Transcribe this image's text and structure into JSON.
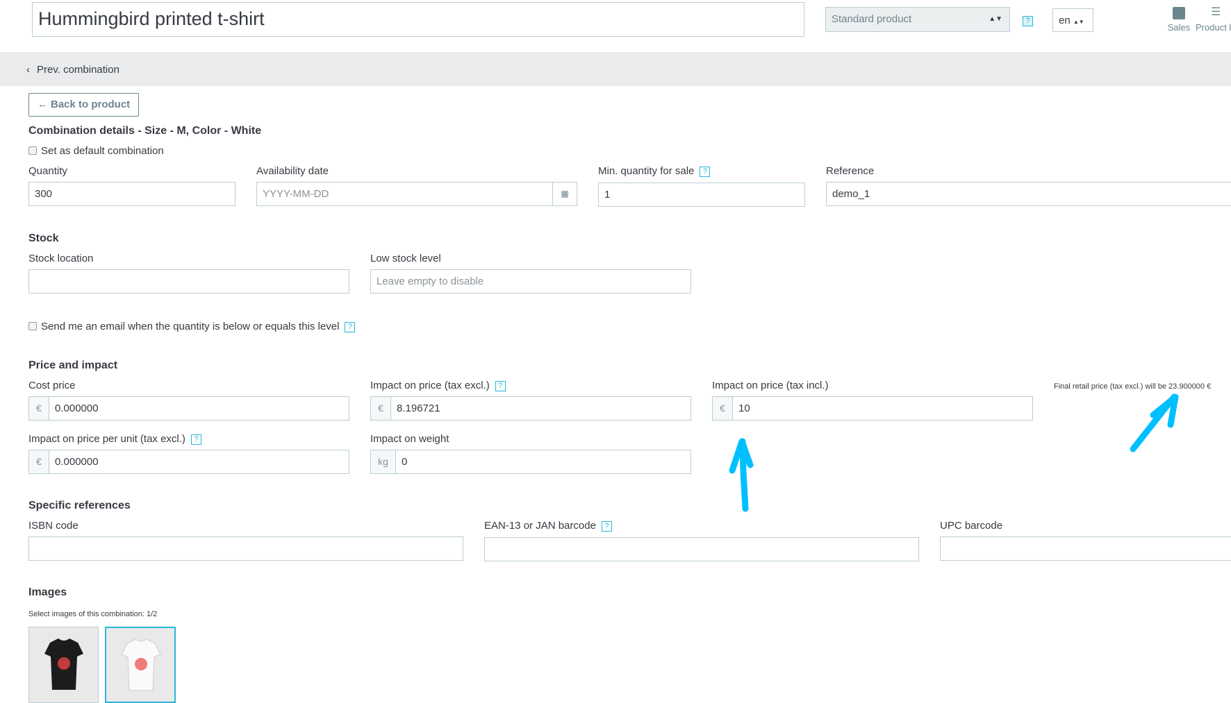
{
  "header": {
    "title": "Hummingbird printed t-shirt",
    "product_type": "Standard product",
    "language": "en",
    "sales_label": "Sales",
    "product_list_label": "Product l"
  },
  "nav": {
    "prev_combination": "Prev. combination",
    "back_to_product": "Back to product"
  },
  "combination": {
    "heading": "Combination details - Size - M, Color - White",
    "default_checkbox": "Set as default combination",
    "quantity_label": "Quantity",
    "quantity_value": "300",
    "availability_label": "Availability date",
    "availability_placeholder": "YYYY-MM-DD",
    "min_qty_label": "Min. quantity for sale",
    "min_qty_value": "1",
    "reference_label": "Reference",
    "reference_value": "demo_1"
  },
  "stock": {
    "heading": "Stock",
    "location_label": "Stock location",
    "location_value": "",
    "low_label": "Low stock level",
    "low_placeholder": "Leave empty to disable",
    "email_checkbox": "Send me an email when the quantity is below or equals this level"
  },
  "price": {
    "heading": "Price and impact",
    "currency": "€",
    "weight_unit": "kg",
    "cost_label": "Cost price",
    "cost_value": "0.000000",
    "impact_excl_label": "Impact on price (tax excl.)",
    "impact_excl_value": "8.196721",
    "impact_incl_label": "Impact on price (tax incl.)",
    "impact_incl_value": "10",
    "final_retail": "Final retail price (tax excl.) will be 23.900000 €",
    "unit_label": "Impact on price per unit (tax excl.)",
    "unit_value": "0.000000",
    "weight_label": "Impact on weight",
    "weight_value": "0"
  },
  "refs": {
    "heading": "Specific references",
    "isbn_label": "ISBN code",
    "ean_label": "EAN-13 or JAN barcode",
    "upc_label": "UPC barcode"
  },
  "images": {
    "heading": "Images",
    "hint": "Select images of this combination: 1/2"
  },
  "help_mark": "?",
  "colors": {
    "accent": "#25b9d7",
    "annotation": "#00bfff"
  }
}
